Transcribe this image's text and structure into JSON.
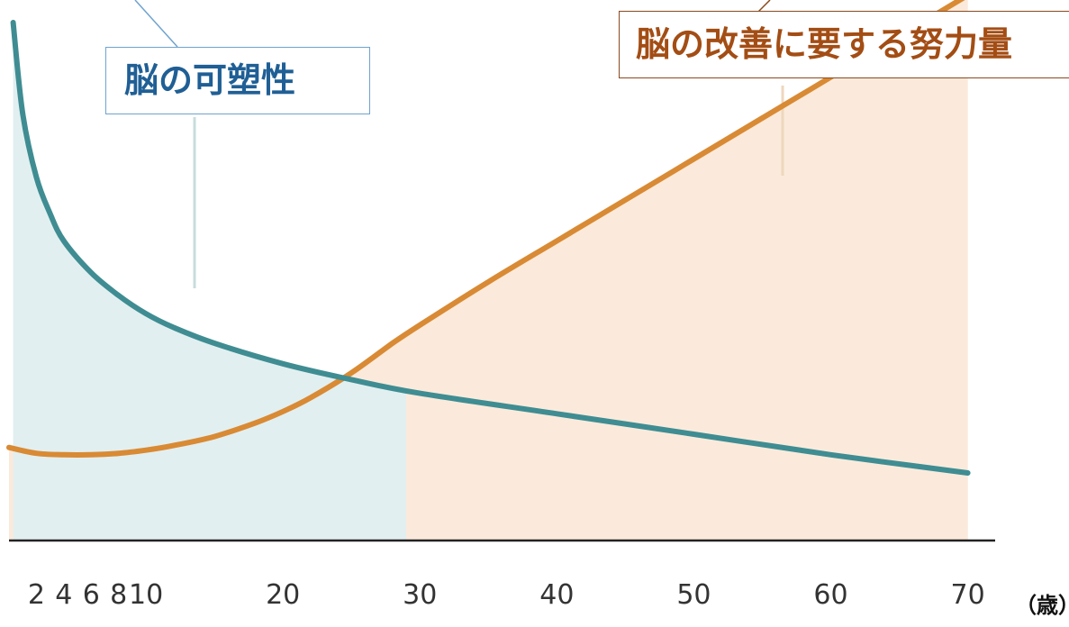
{
  "chart_data": {
    "type": "line",
    "title": "",
    "xlabel": "",
    "x_unit": "（歳）",
    "ylabel": "",
    "xlim": [
      0,
      72
    ],
    "ylim": [
      0,
      100
    ],
    "x_ticks": [
      "2",
      "4",
      "6",
      "8",
      "10",
      "20",
      "30",
      "40",
      "50",
      "60",
      "70"
    ],
    "grid": false,
    "legend": "none",
    "series": [
      {
        "name": "脳の可塑性",
        "color": "#3f8d92",
        "fill": "#e2eff0",
        "x": [
          0.3,
          1,
          2,
          3,
          4,
          6,
          8,
          10,
          12,
          15,
          20,
          25,
          30,
          40,
          50,
          60,
          70
        ],
        "y": [
          100,
          80,
          66,
          58,
          52,
          45,
          40,
          36,
          33,
          29.5,
          25,
          21.5,
          18.5,
          14,
          9.5,
          5,
          1
        ]
      },
      {
        "name": "脳の改善に要する努力量",
        "color": "#d98a34",
        "fill": "#fbeadb",
        "x": [
          0,
          2,
          4,
          6,
          8,
          10,
          12,
          15,
          18,
          20,
          22,
          25,
          28,
          30,
          35,
          40,
          45,
          50,
          55,
          60,
          65,
          70
        ],
        "y": [
          6.6,
          5.3,
          5,
          5,
          5.3,
          6,
          7,
          9,
          12,
          14.5,
          17.5,
          23,
          29.5,
          33.5,
          43,
          52,
          61,
          70,
          79,
          88,
          97,
          106
        ]
      }
    ]
  },
  "callouts": {
    "plasticity": {
      "text": "脳の可塑性",
      "text_color": "#1f5f95",
      "border_color": "#6fa3cf"
    },
    "effort": {
      "text": "脳の改善に要する努力量",
      "text_color": "#a34d14",
      "border_color": "#8a4a1f"
    }
  },
  "colors": {
    "axis": "#222222",
    "plasticity_leader": "#c8dcdc",
    "effort_leader": "#eed7be"
  }
}
